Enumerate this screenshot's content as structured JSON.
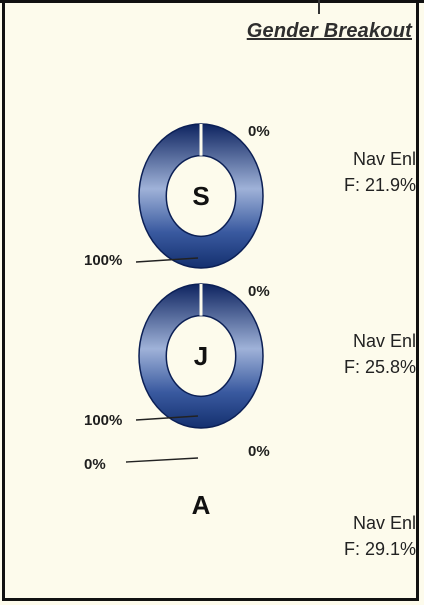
{
  "panel": {
    "title": "Gender Breakout"
  },
  "chart_data": [
    {
      "type": "donut",
      "center_label": "S",
      "slices": [
        {
          "name": "",
          "value": 0,
          "label": "0%"
        },
        {
          "name": "",
          "value": 100,
          "label": "100%"
        }
      ],
      "side_note": {
        "line1": "Nav Enl",
        "line2": "F: 21.9%"
      },
      "colors": [
        "#0f2a6b",
        "#8ea2cc"
      ]
    },
    {
      "type": "donut",
      "center_label": "J",
      "slices": [
        {
          "name": "",
          "value": 0,
          "label": "0%"
        },
        {
          "name": "",
          "value": 100,
          "label": "100%"
        }
      ],
      "side_note": {
        "line1": "Nav Enl",
        "line2": "F: 25.8%"
      },
      "colors": [
        "#0f2a6b",
        "#8ea2cc"
      ]
    },
    {
      "type": "donut",
      "center_label": "A",
      "slices": [
        {
          "name": "",
          "value": 0,
          "label": "0%"
        },
        {
          "name": "",
          "value": 0,
          "label": "0%"
        }
      ],
      "side_note": {
        "line1": "Nav Enl",
        "line2": "F: 29.1%"
      },
      "colors": [
        "#0f2a6b",
        "#8ea2cc"
      ]
    }
  ]
}
